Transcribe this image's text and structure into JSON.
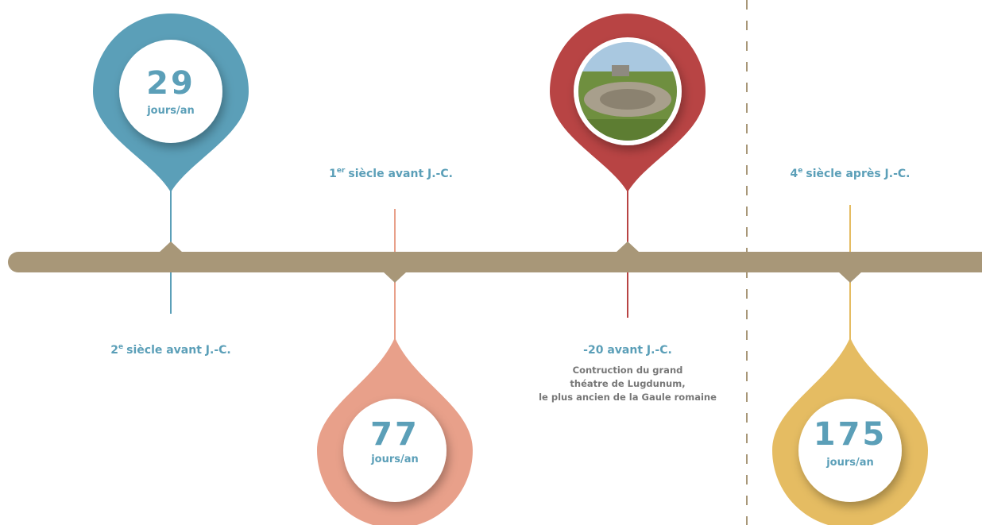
{
  "pins": [
    {
      "value": "29",
      "unit": "jours/an"
    },
    {
      "value": "77",
      "unit": "jours/an"
    },
    {
      "value": "175",
      "unit": "jours/an"
    }
  ],
  "dates": [
    {
      "ordinal": "2",
      "suffix": "e",
      "text": "siècle avant J.-C."
    },
    {
      "ordinal": "1",
      "suffix": "er",
      "text": "siècle avant J.-C."
    },
    {
      "ordinal": "4",
      "suffix": "e",
      "text": "siècle après J.-C."
    }
  ],
  "event": {
    "date": "-20 avant J.-C.",
    "description": [
      "Contruction du grand",
      "théatre de Lugdunum,",
      "le plus ancien de la Gaule romaine"
    ]
  }
}
